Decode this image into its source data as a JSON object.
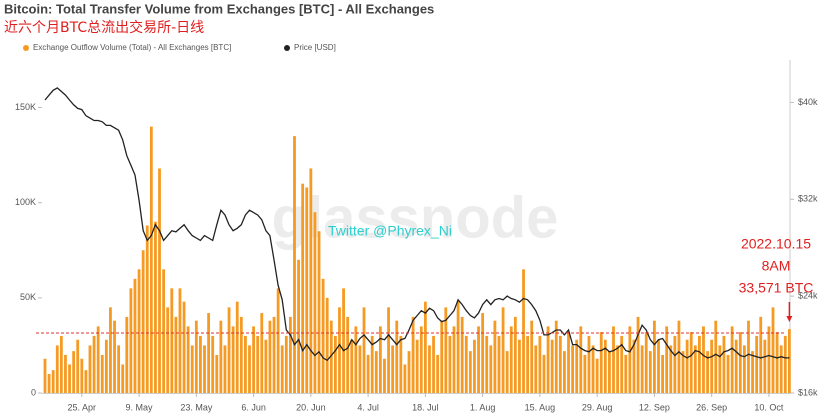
{
  "chart_data": {
    "type": "bar",
    "title": "Bitcoin: Total Transfer Volume from Exchanges [BTC] - All Exchanges",
    "subtitle": "近六个月BTC总流出交易所-日线",
    "watermark": "glassnode",
    "credit": "Twitter @Phyrex_Ni",
    "annotation": [
      "2022.10.15",
      "8AM",
      "33,571 BTC"
    ],
    "categories": [
      null,
      null,
      null,
      null,
      null,
      null,
      null,
      null,
      null,
      "25. Apr",
      null,
      null,
      null,
      null,
      null,
      null,
      null,
      null,
      null,
      null,
      null,
      null,
      null,
      "9. May",
      null,
      null,
      null,
      null,
      null,
      null,
      null,
      null,
      null,
      null,
      null,
      null,
      null,
      "23. May",
      null,
      null,
      null,
      null,
      null,
      null,
      null,
      null,
      null,
      null,
      null,
      null,
      null,
      "6. Jun",
      null,
      null,
      null,
      null,
      null,
      null,
      null,
      null,
      null,
      null,
      null,
      null,
      null,
      "20. Jun",
      null,
      null,
      null,
      null,
      null,
      null,
      null,
      null,
      null,
      null,
      null,
      null,
      null,
      "4. Jul",
      null,
      null,
      null,
      null,
      null,
      null,
      null,
      null,
      null,
      null,
      null,
      null,
      null,
      "18. Jul",
      null,
      null,
      null,
      null,
      null,
      null,
      null,
      null,
      null,
      null,
      null,
      null,
      null,
      "1. Aug",
      null,
      null,
      null,
      null,
      null,
      null,
      null,
      null,
      null,
      null,
      null,
      null,
      null,
      "15. Aug",
      null,
      null,
      null,
      null,
      null,
      null,
      null,
      null,
      null,
      null,
      null,
      null,
      null,
      "29. Aug",
      null,
      null,
      null,
      null,
      null,
      null,
      null,
      null,
      null,
      null,
      null,
      null,
      null,
      "12. Sep",
      null,
      null,
      null,
      null,
      null,
      null,
      null,
      null,
      null,
      null,
      null,
      null,
      null,
      "26. Sep",
      null,
      null,
      null,
      null,
      null,
      null,
      null,
      null,
      null,
      null,
      null,
      null,
      null,
      "10. Oct",
      null,
      null,
      null,
      null,
      null
    ],
    "series": [
      {
        "name": "Exchange Outflow Volume (Total) - All Exchanges [BTC]",
        "color": "#f59a23",
        "values": [
          18000,
          10000,
          12000,
          25000,
          30000,
          20000,
          15000,
          22000,
          28000,
          18000,
          12000,
          25000,
          30000,
          35000,
          20000,
          28000,
          45000,
          38000,
          25000,
          15000,
          40000,
          55000,
          60000,
          65000,
          75000,
          88000,
          140000,
          90000,
          118000,
          65000,
          45000,
          55000,
          40000,
          55000,
          48000,
          35000,
          25000,
          38000,
          30000,
          25000,
          42000,
          30000,
          20000,
          38000,
          25000,
          45000,
          35000,
          48000,
          40000,
          30000,
          25000,
          35000,
          30000,
          42000,
          28000,
          38000,
          40000,
          55000,
          25000,
          30000,
          40000,
          135000,
          70000,
          110000,
          108000,
          118000,
          95000,
          85000,
          60000,
          50000,
          38000,
          30000,
          45000,
          55000,
          40000,
          28000,
          35000,
          25000,
          45000,
          20000,
          30000,
          22000,
          35000,
          18000,
          45000,
          25000,
          38000,
          30000,
          15000,
          22000,
          40000,
          28000,
          35000,
          48000,
          25000,
          30000,
          20000,
          38000,
          45000,
          30000,
          35000,
          48000,
          40000,
          30000,
          22000,
          28000,
          35000,
          42000,
          30000,
          25000,
          38000,
          30000,
          45000,
          22000,
          35000,
          40000,
          28000,
          65000,
          30000,
          38000,
          25000,
          30000,
          20000,
          35000,
          28000,
          38000,
          30000,
          22000,
          32000,
          25000,
          28000,
          35000,
          20000,
          30000,
          25000,
          18000,
          32000,
          28000,
          22000,
          35000,
          25000,
          30000,
          20000,
          35000,
          28000,
          40000,
          25000,
          32000,
          22000,
          38000,
          28000,
          20000,
          35000,
          25000,
          30000,
          38000,
          22000,
          28000,
          32000,
          25000,
          30000,
          35000,
          22000,
          28000,
          38000,
          25000,
          30000,
          20000,
          35000,
          28000,
          32000,
          25000,
          38000,
          22000,
          30000,
          40000,
          28000,
          35000,
          45000,
          32000,
          25000,
          30000,
          33571
        ]
      },
      {
        "name": "Price [USD]",
        "color": "#222222",
        "axis": "y2",
        "values": [
          40200,
          40600,
          41000,
          41200,
          40900,
          40600,
          40200,
          39800,
          39500,
          39400,
          38900,
          38700,
          38500,
          38500,
          38400,
          38100,
          38100,
          37900,
          37700,
          36900,
          35600,
          34800,
          34000,
          31900,
          29400,
          28600,
          29000,
          29900,
          29400,
          28600,
          29000,
          29400,
          29300,
          29600,
          29900,
          29400,
          29000,
          28800,
          28600,
          29000,
          28800,
          28600,
          29900,
          31100,
          30700,
          29900,
          29400,
          29600,
          29900,
          30700,
          31100,
          30900,
          30700,
          30300,
          29400,
          29000,
          27000,
          24900,
          23700,
          21200,
          20800,
          20000,
          20400,
          19500,
          20000,
          19500,
          19100,
          19400,
          18900,
          18700,
          19100,
          19500,
          20000,
          19500,
          19700,
          20400,
          20000,
          20500,
          20800,
          20400,
          20000,
          20200,
          20500,
          20400,
          20800,
          20400,
          20000,
          20400,
          20500,
          21200,
          22000,
          22400,
          22800,
          22600,
          23000,
          22800,
          22200,
          21900,
          22000,
          22400,
          22800,
          23700,
          23300,
          22800,
          22400,
          22200,
          22600,
          23300,
          23700,
          23300,
          23700,
          23800,
          23700,
          24000,
          23800,
          23700,
          23500,
          23800,
          23700,
          23300,
          22800,
          22000,
          20800,
          20800,
          21000,
          21200,
          21200,
          20800,
          21200,
          20000,
          20000,
          19700,
          19500,
          19400,
          19700,
          19500,
          19500,
          19700,
          19400,
          19500,
          19700,
          20000,
          19500,
          19400,
          20000,
          20800,
          21600,
          21200,
          20400,
          20000,
          20400,
          20500,
          20000,
          19500,
          19100,
          19400,
          19100,
          18900,
          19100,
          19500,
          19400,
          19100,
          18900,
          19000,
          19200,
          19000,
          19400,
          19500,
          19700,
          19400,
          19100,
          19000,
          19200,
          19100,
          19000,
          18900,
          19000,
          19100,
          19000,
          18900,
          19000,
          18900,
          18900
        ]
      }
    ],
    "reference_line": {
      "value": 31500,
      "color": "#e03030"
    },
    "ylim": [
      0,
      175000
    ],
    "yticks": [
      0,
      {
        "value": 50000,
        "label": "50K"
      },
      {
        "value": 100000,
        "label": "100K"
      },
      {
        "value": 150000,
        "label": "150K"
      }
    ],
    "y2lim": [
      16000,
      43500
    ],
    "y2ticks": [
      {
        "value": 16000,
        "label": "$16k"
      },
      {
        "value": 24000,
        "label": "$24k"
      },
      {
        "value": 32000,
        "label": "$32k"
      },
      {
        "value": 40000,
        "label": "$40k"
      }
    ],
    "grid": false
  }
}
